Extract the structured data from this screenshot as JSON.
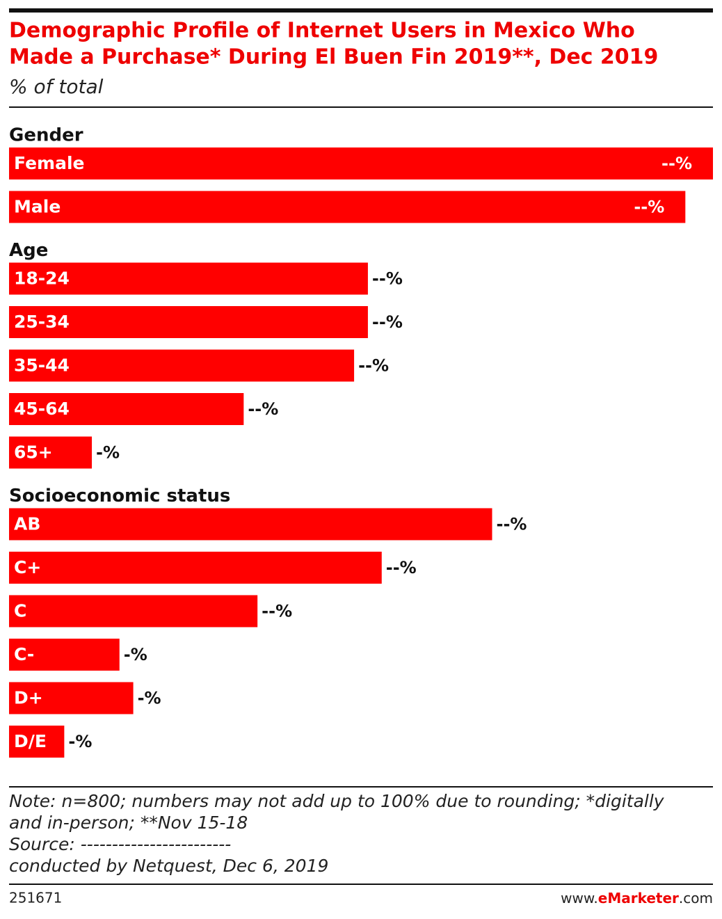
{
  "chart_data": {
    "type": "bar",
    "title": [
      "Demographic Profile of Internet Users in Mexico Who",
      "Made a Purchase* During El Buen Fin 2019**, Dec 2019"
    ],
    "subtitle": "% of total",
    "color": "#ff0000",
    "xlim": [
      0,
      51
    ],
    "groups": [
      {
        "name": "Gender",
        "categories": [
          "Female",
          "Male"
        ],
        "values": [
          51,
          49
        ],
        "value_labels": [
          "--%",
          "--%"
        ]
      },
      {
        "name": "Age",
        "categories": [
          "18-24",
          "25-34",
          "35-44",
          "45-64",
          "65+"
        ],
        "values": [
          26,
          26,
          25,
          17,
          6
        ],
        "value_labels": [
          "--%",
          "--%",
          "--%",
          "--%",
          "-%"
        ]
      },
      {
        "name": "Socioeconomic status",
        "categories": [
          "AB",
          "C+",
          "C",
          "C-",
          "D+",
          "D/E"
        ],
        "values": [
          35,
          27,
          18,
          8,
          9,
          4
        ],
        "value_labels": [
          "--%",
          "--%",
          "--%",
          "-%",
          "-%",
          "-%"
        ]
      }
    ],
    "notes": [
      "Note: n=800; numbers may not add up to 100% due to rounding;  *digitally",
      "and in-person; **Nov 15-18",
      "Source: ------------------------",
      "conducted by Netquest, Dec 6, 2019"
    ],
    "id": "251671",
    "brand": [
      "www.",
      "eMarketer",
      ".com"
    ]
  }
}
